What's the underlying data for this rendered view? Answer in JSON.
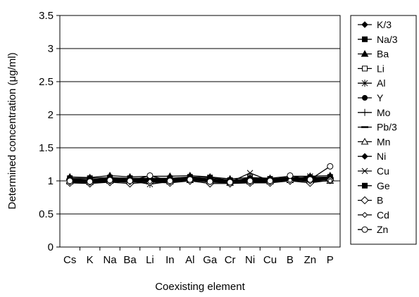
{
  "chart_data": {
    "type": "line",
    "title": "",
    "xlabel": "Coexisting element",
    "ylabel": "Determined concentration (μg/ml)",
    "ylim": [
      0,
      3.5
    ],
    "yticks": [
      "0",
      "0.5",
      "1",
      "1.5",
      "2",
      "2.5",
      "3",
      "3.5"
    ],
    "grid": "horizontal",
    "legend_position": "right",
    "categories": [
      "Cs",
      "K",
      "Na",
      "Ba",
      "Li",
      "In",
      "Al",
      "Ga",
      "Cr",
      "Ni",
      "Cu",
      "B",
      "Zn",
      "P"
    ],
    "series": [
      {
        "name": "K/3",
        "marker": "diamond-filled",
        "values": [
          1.0,
          0.98,
          1.0,
          0.99,
          1.0,
          1.0,
          1.02,
          0.99,
          0.98,
          1.0,
          1.0,
          1.02,
          1.0,
          1.03
        ]
      },
      {
        "name": "Na/3",
        "marker": "square-filled",
        "values": [
          1.04,
          1.04,
          1.05,
          1.04,
          1.04,
          1.04,
          1.06,
          1.05,
          1.01,
          1.03,
          1.03,
          1.05,
          1.05,
          1.06
        ]
      },
      {
        "name": "Ba",
        "marker": "triangle-filled",
        "values": [
          1.06,
          1.05,
          1.08,
          1.06,
          1.07,
          1.07,
          1.08,
          1.06,
          1.03,
          1.05,
          1.04,
          1.07,
          1.07,
          1.08
        ]
      },
      {
        "name": "Li",
        "marker": "square-open",
        "values": [
          1.01,
          1.0,
          1.01,
          1.0,
          1.02,
          1.01,
          1.03,
          1.0,
          0.99,
          1.01,
          1.0,
          1.03,
          1.02,
          1.02
        ]
      },
      {
        "name": "Al",
        "marker": "asterisk",
        "values": [
          1.0,
          0.99,
          1.01,
          1.0,
          0.95,
          0.99,
          1.02,
          0.99,
          0.98,
          1.05,
          1.0,
          1.03,
          1.01,
          1.02
        ]
      },
      {
        "name": "Y",
        "marker": "circle-filled",
        "values": [
          1.02,
          1.01,
          1.03,
          1.02,
          1.02,
          1.02,
          1.04,
          1.02,
          1.0,
          1.02,
          1.02,
          1.04,
          1.03,
          1.04
        ]
      },
      {
        "name": "Mo",
        "marker": "plus",
        "values": [
          1.03,
          1.02,
          1.04,
          1.03,
          1.03,
          1.03,
          1.05,
          1.03,
          1.01,
          1.02,
          1.02,
          1.05,
          1.04,
          1.05
        ]
      },
      {
        "name": "Pb/3",
        "marker": "dash",
        "values": [
          1.02,
          1.01,
          1.02,
          1.01,
          1.02,
          1.01,
          1.03,
          1.01,
          0.99,
          1.01,
          1.01,
          1.03,
          1.02,
          1.03
        ]
      },
      {
        "name": "Mn",
        "marker": "triangle-open",
        "values": [
          0.99,
          0.98,
          1.0,
          0.99,
          0.99,
          0.99,
          1.01,
          0.99,
          0.97,
          0.99,
          0.99,
          1.01,
          1.0,
          1.0
        ]
      },
      {
        "name": "Ni",
        "marker": "diamond-filled",
        "values": [
          1.01,
          1.0,
          1.01,
          1.0,
          1.01,
          1.0,
          1.02,
          1.0,
          0.99,
          1.0,
          1.01,
          1.02,
          1.01,
          1.02
        ]
      },
      {
        "name": "Cu",
        "marker": "x",
        "values": [
          1.0,
          0.99,
          1.01,
          1.0,
          1.0,
          0.99,
          1.02,
          0.99,
          0.98,
          1.12,
          1.0,
          1.02,
          1.07,
          1.02
        ]
      },
      {
        "name": "Ge",
        "marker": "square-filled",
        "values": [
          1.01,
          1.0,
          1.02,
          1.01,
          1.01,
          1.01,
          1.03,
          1.01,
          0.99,
          1.01,
          1.01,
          1.03,
          1.02,
          1.03
        ]
      },
      {
        "name": "B",
        "marker": "diamond-open",
        "values": [
          0.97,
          0.96,
          0.98,
          0.96,
          0.98,
          0.97,
          1.0,
          0.96,
          0.96,
          0.97,
          0.97,
          1.0,
          0.97,
          1.01
        ]
      },
      {
        "name": "Cd",
        "marker": "diamond-open-small",
        "values": [
          0.98,
          0.97,
          0.99,
          0.98,
          0.99,
          0.98,
          1.01,
          0.98,
          0.97,
          0.98,
          0.98,
          1.01,
          0.99,
          1.0
        ]
      },
      {
        "name": "Zn",
        "marker": "circle-open",
        "values": [
          1.0,
          0.99,
          1.01,
          1.0,
          1.08,
          1.0,
          1.02,
          0.99,
          0.98,
          1.0,
          1.0,
          1.08,
          1.02,
          1.22
        ]
      }
    ]
  }
}
